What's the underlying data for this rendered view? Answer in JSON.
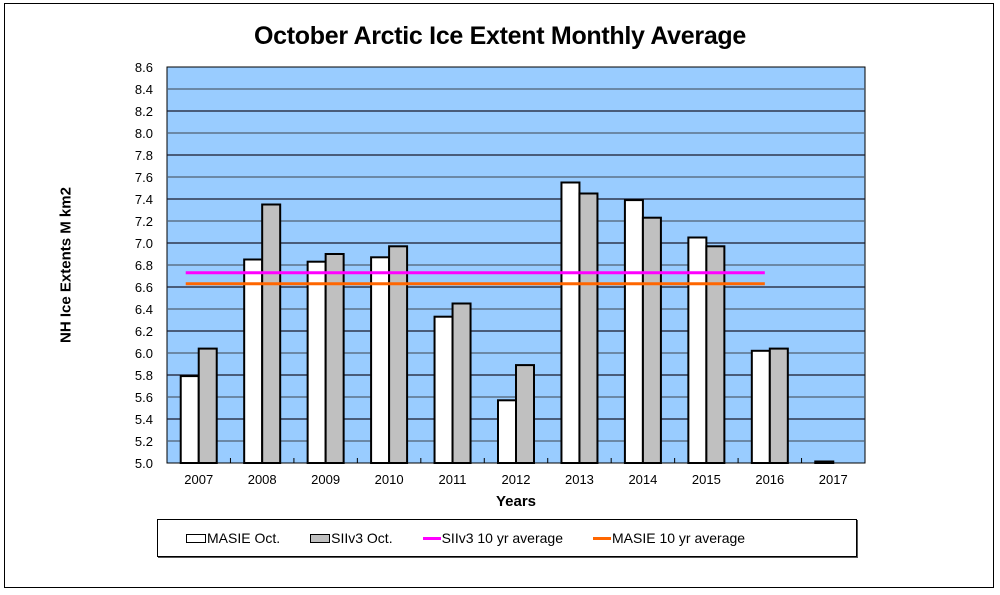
{
  "chart_data": {
    "type": "bar",
    "title": "October Arctic Ice Extent Monthly Average",
    "xlabel": "Years",
    "ylabel": "NH Ice Extents M km2",
    "ylim": [
      5.0,
      8.6
    ],
    "yticks": [
      "5.0",
      "5.2",
      "5.4",
      "5.6",
      "5.8",
      "6.0",
      "6.2",
      "6.4",
      "6.6",
      "6.8",
      "7.0",
      "7.2",
      "7.4",
      "7.6",
      "7.8",
      "8.0",
      "8.2",
      "8.4",
      "8.6"
    ],
    "categories": [
      "2007",
      "2008",
      "2009",
      "2010",
      "2011",
      "2012",
      "2013",
      "2014",
      "2015",
      "2016",
      "2017"
    ],
    "series": [
      {
        "name": "MASIE Oct.",
        "kind": "bar",
        "color": "#ffffff",
        "values": [
          5.79,
          6.85,
          6.83,
          6.87,
          6.33,
          5.57,
          7.55,
          7.39,
          7.05,
          6.02,
          5.0
        ]
      },
      {
        "name": "SIIv3 Oct.",
        "kind": "bar",
        "color": "#c0c0c0",
        "values": [
          6.04,
          7.35,
          6.9,
          6.97,
          6.45,
          5.89,
          7.45,
          7.23,
          6.97,
          6.04,
          null
        ]
      },
      {
        "name": "SIIv3 10 yr average",
        "kind": "line",
        "color": "#ff00ff",
        "value": 6.73,
        "span": [
          "2007",
          "2016"
        ]
      },
      {
        "name": "MASIE 10 yr average",
        "kind": "line",
        "color": "#ff6600",
        "value": 6.63,
        "span": [
          "2007",
          "2016"
        ]
      }
    ],
    "grid": true,
    "plot_background": "#99ccff",
    "legend_position": "bottom"
  }
}
